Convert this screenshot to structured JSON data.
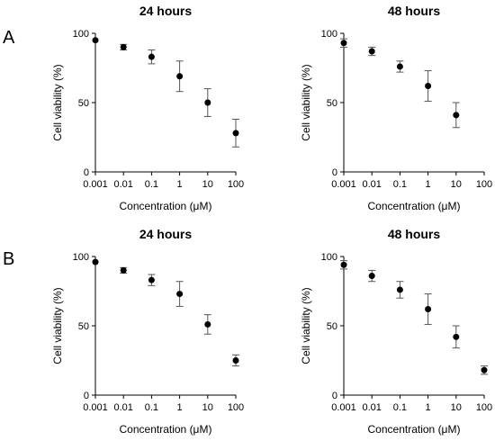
{
  "figure": {
    "panel_labels": [
      "A",
      "B"
    ]
  },
  "chart_data": [
    {
      "type": "scatter",
      "panel": "A",
      "title": "24 hours",
      "xlabel": "Concentration (μM)",
      "ylabel": "Cell viability (%)",
      "xscale": "log",
      "xlim": [
        0.001,
        100
      ],
      "ylim": [
        0,
        100
      ],
      "xticks": [
        "0.001",
        "0.01",
        "0.1",
        "1",
        "10",
        "100"
      ],
      "yticks": [
        "0",
        "50",
        "100"
      ],
      "x": [
        0.001,
        0.01,
        0.1,
        1,
        10,
        100
      ],
      "y": [
        95,
        90,
        83,
        69,
        50,
        28
      ],
      "error": [
        0,
        2,
        5,
        11,
        10,
        10
      ],
      "grid": false
    },
    {
      "type": "scatter",
      "panel": "A",
      "title": "48 hours",
      "xlabel": "Concentration (μM)",
      "ylabel": "Cell viability (%)",
      "xscale": "log",
      "xlim": [
        0.001,
        100
      ],
      "ylim": [
        0,
        100
      ],
      "xticks": [
        "0.001",
        "0.01",
        "0.1",
        "1",
        "10",
        "100"
      ],
      "yticks": [
        "0",
        "50",
        "100"
      ],
      "x": [
        0.001,
        0.01,
        0.1,
        1,
        10
      ],
      "y": [
        93,
        87,
        76,
        62,
        41
      ],
      "error": [
        3,
        3,
        4,
        11,
        9
      ],
      "grid": false
    },
    {
      "type": "scatter",
      "panel": "B",
      "title": "24 hours",
      "xlabel": "Concentration (μM)",
      "ylabel": "Cell viability (%)",
      "xscale": "log",
      "xlim": [
        0.001,
        100
      ],
      "ylim": [
        0,
        100
      ],
      "xticks": [
        "0.001",
        "0.01",
        "0.1",
        "1",
        "10",
        "100"
      ],
      "yticks": [
        "0",
        "50",
        "100"
      ],
      "x": [
        0.001,
        0.01,
        0.1,
        1,
        10,
        100
      ],
      "y": [
        96,
        90,
        83,
        73,
        51,
        25
      ],
      "error": [
        0,
        2,
        4,
        9,
        7,
        4
      ],
      "grid": false
    },
    {
      "type": "scatter",
      "panel": "B",
      "title": "48 hours",
      "xlabel": "Concentration (μM)",
      "ylabel": "Cell viability (%)",
      "xscale": "log",
      "xlim": [
        0.001,
        100
      ],
      "ylim": [
        0,
        100
      ],
      "xticks": [
        "0.001",
        "0.01",
        "0.1",
        "1",
        "10",
        "100"
      ],
      "yticks": [
        "0",
        "50",
        "100"
      ],
      "x": [
        0.001,
        0.01,
        0.1,
        1,
        10,
        100
      ],
      "y": [
        94,
        86,
        76,
        62,
        42,
        18
      ],
      "error": [
        3,
        4,
        6,
        11,
        8,
        3
      ],
      "grid": false
    }
  ]
}
